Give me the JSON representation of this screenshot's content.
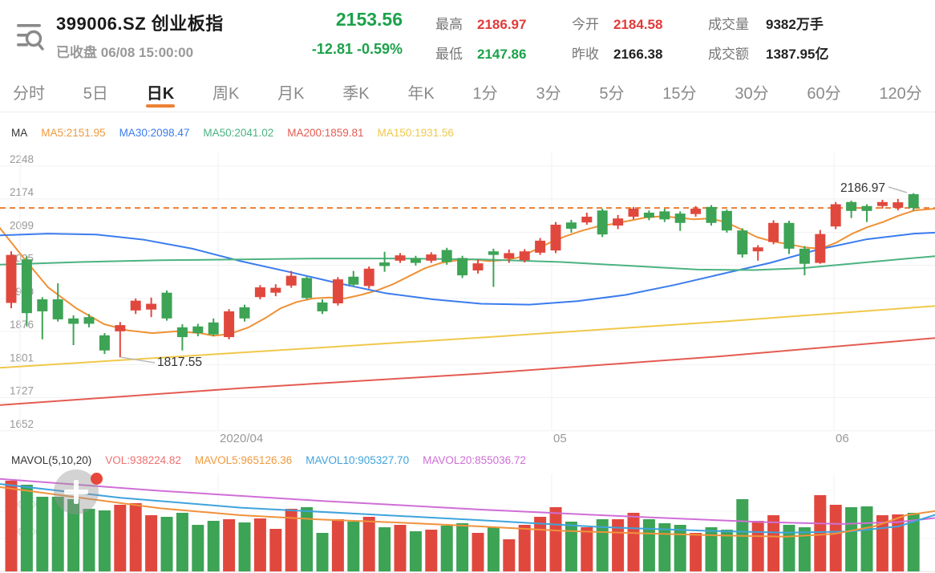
{
  "header": {
    "icon": "list-search-icon",
    "title": "399006.SZ 创业板指",
    "market_status": "已收盘",
    "datetime": "06/08 15:00:00",
    "price": "2153.56",
    "change": "-12.81",
    "change_pct": "-0.59%",
    "price_color": "#1ba24a",
    "stats": [
      {
        "label": "最高",
        "value": "2186.97",
        "color": "#e23a3a"
      },
      {
        "label": "最低",
        "value": "2147.86",
        "color": "#1ba24a"
      },
      {
        "label": "今开",
        "value": "2184.58",
        "color": "#e23a3a"
      },
      {
        "label": "昨收",
        "value": "2166.38",
        "color": "#222"
      },
      {
        "label": "成交量",
        "value": "9382万手",
        "color": "#222"
      },
      {
        "label": "成交额",
        "value": "1387.95亿",
        "color": "#222"
      }
    ]
  },
  "tabs": {
    "items": [
      "分时",
      "5日",
      "日K",
      "周K",
      "月K",
      "季K",
      "年K",
      "1分",
      "3分",
      "5分",
      "15分",
      "30分",
      "60分",
      "120分"
    ],
    "active_index": 2,
    "accent": "#ed8033"
  },
  "ma_legend": {
    "title": "MA",
    "items": [
      {
        "text": "MA5:2151.95",
        "color": "#ef9a3d"
      },
      {
        "text": "MA30:2098.47",
        "color": "#3b7ced"
      },
      {
        "text": "MA50:2041.02",
        "color": "#4cb381"
      },
      {
        "text": "MA200:1859.81",
        "color": "#e45b52"
      },
      {
        "text": "MA150:1931.56",
        "color": "#f0c84a"
      }
    ]
  },
  "mavol_legend": {
    "title": "MAVOL(5,10,20)",
    "items": [
      {
        "text": "VOL:938224.82",
        "color": "#ee6f6f"
      },
      {
        "text": "MAVOL5:965126.36",
        "color": "#ef9a3d"
      },
      {
        "text": "MAVOL10:905327.70",
        "color": "#3fa3dc"
      },
      {
        "text": "MAVOL20:855036.72",
        "color": "#cf6fd6"
      }
    ]
  },
  "chart_data": {
    "type": "candlestick+volume",
    "up_color": "#e0483e",
    "down_color": "#3da355",
    "grid_color": "#f0f1f4",
    "axis_text_color": "#999",
    "main": {
      "y_ticks": [
        2248,
        2174,
        2099,
        2025,
        1950,
        1876,
        1801,
        1727,
        1652
      ],
      "x_ticks": [
        {
          "x": 272,
          "label": "2020/04"
        },
        {
          "x": 688,
          "label": "05"
        },
        {
          "x": 1040,
          "label": "06"
        }
      ],
      "extra_vgrid": [
        25
      ],
      "current_price_line": {
        "value": 2153.56,
        "color": "#ed7d31"
      },
      "annotations": [
        {
          "text": "1817.55",
          "tx": 196,
          "ty": 456,
          "x1": 150,
          "y1": 445,
          "x2": 193,
          "y2": 452
        },
        {
          "text": "2186.97",
          "tx": 1048,
          "ty": 239,
          "x1": 1131,
          "y1": 240,
          "x2": 1108,
          "y2": 233
        }
      ],
      "candles": [
        [
          1940,
          2048,
          2056,
          1928
        ],
        [
          2038,
          1917,
          2045,
          1887
        ],
        [
          1948,
          1921,
          1953,
          1858
        ],
        [
          1948,
          1903,
          1984,
          1898
        ],
        [
          1905,
          1893,
          1912,
          1845
        ],
        [
          1908,
          1893,
          1915,
          1885
        ],
        [
          1867,
          1833,
          1872,
          1825
        ],
        [
          1876,
          1890,
          1897,
          1817.55
        ],
        [
          1923,
          1945,
          1950,
          1915
        ],
        [
          1925,
          1938,
          1952,
          1908
        ],
        [
          1963,
          1905,
          1968,
          1900
        ],
        [
          1885,
          1863,
          1892,
          1833
        ],
        [
          1887,
          1872,
          1893,
          1865
        ],
        [
          1896,
          1869,
          1905,
          1865
        ],
        [
          1863,
          1921,
          1926,
          1858
        ],
        [
          1930,
          1905,
          1936,
          1898
        ],
        [
          1953,
          1975,
          1980,
          1948
        ],
        [
          1963,
          1974,
          1982,
          1955
        ],
        [
          1979,
          2001,
          2012,
          1974
        ],
        [
          1996,
          1951,
          2000,
          1948
        ],
        [
          1941,
          1921,
          1948,
          1915
        ],
        [
          1939,
          1993,
          1998,
          1934
        ],
        [
          1999,
          1981,
          2012,
          1976
        ],
        [
          1978,
          2017,
          2022,
          1972
        ],
        [
          2031,
          2023,
          2055,
          2010
        ],
        [
          2035,
          2047,
          2052,
          2030
        ],
        [
          2041,
          2030,
          2046,
          2024
        ],
        [
          2035,
          2049,
          2054,
          2030
        ],
        [
          2059,
          2032,
          2064,
          2026
        ],
        [
          2041,
          2002,
          2046,
          1996
        ],
        [
          2013,
          2029,
          2038,
          2006
        ],
        [
          2056,
          2048,
          2062,
          1976
        ],
        [
          2040,
          2052,
          2060,
          2030
        ],
        [
          2036,
          2056,
          2061,
          2031
        ],
        [
          2053,
          2080,
          2086,
          2048
        ],
        [
          2058,
          2116,
          2122,
          2052
        ],
        [
          2121,
          2107,
          2127,
          2098
        ],
        [
          2121,
          2134,
          2143,
          2116
        ],
        [
          2148,
          2094,
          2152,
          2088
        ],
        [
          2114,
          2130,
          2138,
          2106
        ],
        [
          2134,
          2152,
          2156,
          2128
        ],
        [
          2143,
          2132,
          2148,
          2126
        ],
        [
          2146,
          2128,
          2152,
          2122
        ],
        [
          2141,
          2120,
          2146,
          2102
        ],
        [
          2140,
          2152,
          2158,
          2134
        ],
        [
          2156,
          2120,
          2160,
          2114
        ],
        [
          2147,
          2103,
          2150,
          2098
        ],
        [
          2103,
          2049,
          2108,
          2042
        ],
        [
          2056,
          2065,
          2070,
          2035
        ],
        [
          2077,
          2120,
          2126,
          2072
        ],
        [
          2120,
          2062,
          2125,
          2050
        ],
        [
          2062,
          2028,
          2068,
          2002
        ],
        [
          2030,
          2095,
          2104,
          2028
        ],
        [
          2112,
          2162,
          2167,
          2106
        ],
        [
          2167,
          2147,
          2170,
          2131
        ],
        [
          2158,
          2147,
          2162,
          2122
        ],
        [
          2158,
          2167,
          2172,
          2152
        ],
        [
          2154,
          2166.38,
          2174,
          2148
        ],
        [
          2184.58,
          2153.56,
          2186.97,
          2147.86
        ]
      ],
      "ma_lines": [
        {
          "name": "MA5",
          "color": "#ef9136",
          "points": [
            [
              0,
              2108
            ],
            [
              30,
              2040
            ],
            [
              60,
              1975
            ],
            [
              95,
              1928
            ],
            [
              130,
              1892
            ],
            [
              160,
              1878
            ],
            [
              190,
              1872
            ],
            [
              220,
              1876
            ],
            [
              250,
              1872
            ],
            [
              266,
              1866
            ],
            [
              286,
              1870
            ],
            [
              310,
              1885
            ],
            [
              330,
              1905
            ],
            [
              350,
              1928
            ],
            [
              370,
              1942
            ],
            [
              390,
              1950
            ],
            [
              410,
              1952
            ],
            [
              430,
              1950
            ],
            [
              450,
              1958
            ],
            [
              470,
              1968
            ],
            [
              490,
              1982
            ],
            [
              510,
              2000
            ],
            [
              530,
              2018
            ],
            [
              550,
              2030
            ],
            [
              570,
              2036
            ],
            [
              590,
              2038
            ],
            [
              610,
              2034
            ],
            [
              627,
              2036
            ],
            [
              646,
              2042
            ],
            [
              666,
              2058
            ],
            [
              685,
              2075
            ],
            [
              705,
              2090
            ],
            [
              725,
              2102
            ],
            [
              745,
              2112
            ],
            [
              765,
              2118
            ],
            [
              785,
              2125
            ],
            [
              805,
              2132
            ],
            [
              825,
              2135
            ],
            [
              845,
              2132
            ],
            [
              865,
              2128
            ],
            [
              885,
              2130
            ],
            [
              905,
              2122
            ],
            [
              925,
              2105
            ],
            [
              944,
              2088
            ],
            [
              964,
              2078
            ],
            [
              984,
              2072
            ],
            [
              1003,
              2065
            ],
            [
              1023,
              2062
            ],
            [
              1042,
              2075
            ],
            [
              1062,
              2095
            ],
            [
              1081,
              2110
            ],
            [
              1101,
              2122
            ],
            [
              1120,
              2136
            ],
            [
              1140,
              2148
            ],
            [
              1166,
              2152
            ]
          ]
        },
        {
          "name": "MA30",
          "color": "#3b7ced",
          "points": [
            [
              0,
              2092
            ],
            [
              60,
              2096
            ],
            [
              120,
              2094
            ],
            [
              180,
              2082
            ],
            [
              240,
              2062
            ],
            [
              300,
              2034
            ],
            [
              360,
              2010
            ],
            [
              420,
              1985
            ],
            [
              480,
              1962
            ],
            [
              540,
              1948
            ],
            [
              600,
              1938
            ],
            [
              660,
              1936
            ],
            [
              720,
              1944
            ],
            [
              780,
              1958
            ],
            [
              840,
              1980
            ],
            [
              900,
              2005
            ],
            [
              960,
              2030
            ],
            [
              1020,
              2060
            ],
            [
              1080,
              2083
            ],
            [
              1140,
              2096
            ],
            [
              1166,
              2098
            ]
          ]
        },
        {
          "name": "MA50",
          "color": "#4cb381",
          "points": [
            [
              0,
              2026
            ],
            [
              100,
              2032
            ],
            [
              200,
              2036
            ],
            [
              300,
              2038
            ],
            [
              400,
              2040
            ],
            [
              500,
              2040
            ],
            [
              600,
              2038
            ],
            [
              700,
              2032
            ],
            [
              800,
              2022
            ],
            [
              870,
              2015
            ],
            [
              940,
              2014
            ],
            [
              1000,
              2018
            ],
            [
              1060,
              2028
            ],
            [
              1120,
              2038
            ],
            [
              1166,
              2045
            ]
          ]
        },
        {
          "name": "MA150",
          "color": "#f0c84a",
          "points": [
            [
              0,
              1794
            ],
            [
              300,
              1828
            ],
            [
              600,
              1862
            ],
            [
              900,
              1898
            ],
            [
              1166,
              1933
            ]
          ]
        },
        {
          "name": "MA200",
          "color": "#e45b52",
          "points": [
            [
              0,
              1710
            ],
            [
              300,
              1748
            ],
            [
              600,
              1781
            ],
            [
              900,
              1820
            ],
            [
              1166,
              1861
            ]
          ]
        }
      ]
    },
    "volume": {
      "volumes": [
        1452300,
        1388000,
        1195200,
        1195200,
        1156700,
        1002500,
        976800,
        1066700,
        1092400,
        899600,
        873900,
        938200,
        745400,
        809700,
        835400,
        784000,
        848200,
        681200,
        1002500,
        1028200,
        616900,
        835400,
        796800,
        874000,
        706900,
        745400,
        642600,
        668300,
        732600,
        771100,
        616900,
        706900,
        514100,
        745400,
        874000,
        1028200,
        796800,
        706900,
        835400,
        835400,
        938200,
        835400,
        771100,
        745400,
        616900,
        706900,
        668300,
        1156700,
        809700,
        899600,
        745400,
        706900,
        1220900,
        1066700,
        1028200,
        1041000,
        899600,
        912500,
        938224.82
      ],
      "y_labels": [
        {
          "label": "1000000",
          "y": 633
        },
        {
          "label": "200000",
          "y": 667
        }
      ],
      "mavol_lines": [
        {
          "name": "MAVOL20",
          "color": "#cf6fd6",
          "points": [
            [
              0,
              1480000
            ],
            [
              200,
              1290000
            ],
            [
              400,
              1130000
            ],
            [
              600,
              990000
            ],
            [
              800,
              870000
            ],
            [
              950,
              790000
            ],
            [
              1050,
              760000
            ],
            [
              1120,
              790000
            ],
            [
              1166,
              855036
            ]
          ]
        },
        {
          "name": "MAVOL10",
          "color": "#3fa3dc",
          "points": [
            [
              0,
              1400000
            ],
            [
              150,
              1180000
            ],
            [
              300,
              1020000
            ],
            [
              450,
              920000
            ],
            [
              600,
              820000
            ],
            [
              750,
              710000
            ],
            [
              880,
              650000
            ],
            [
              980,
              620000
            ],
            [
              1060,
              640000
            ],
            [
              1120,
              720000
            ],
            [
              1166,
              905327
            ]
          ]
        },
        {
          "name": "MAVOL5",
          "color": "#f0923c",
          "points": [
            [
              0,
              1350000
            ],
            [
              100,
              1180000
            ],
            [
              200,
              1010000
            ],
            [
              300,
              900000
            ],
            [
              400,
              830000
            ],
            [
              500,
              780000
            ],
            [
              600,
              720000
            ],
            [
              700,
              650000
            ],
            [
              800,
              610000
            ],
            [
              900,
              575000
            ],
            [
              980,
              555000
            ],
            [
              1040,
              600000
            ],
            [
              1090,
              720000
            ],
            [
              1130,
              900000
            ],
            [
              1166,
              965126
            ]
          ]
        }
      ]
    }
  }
}
